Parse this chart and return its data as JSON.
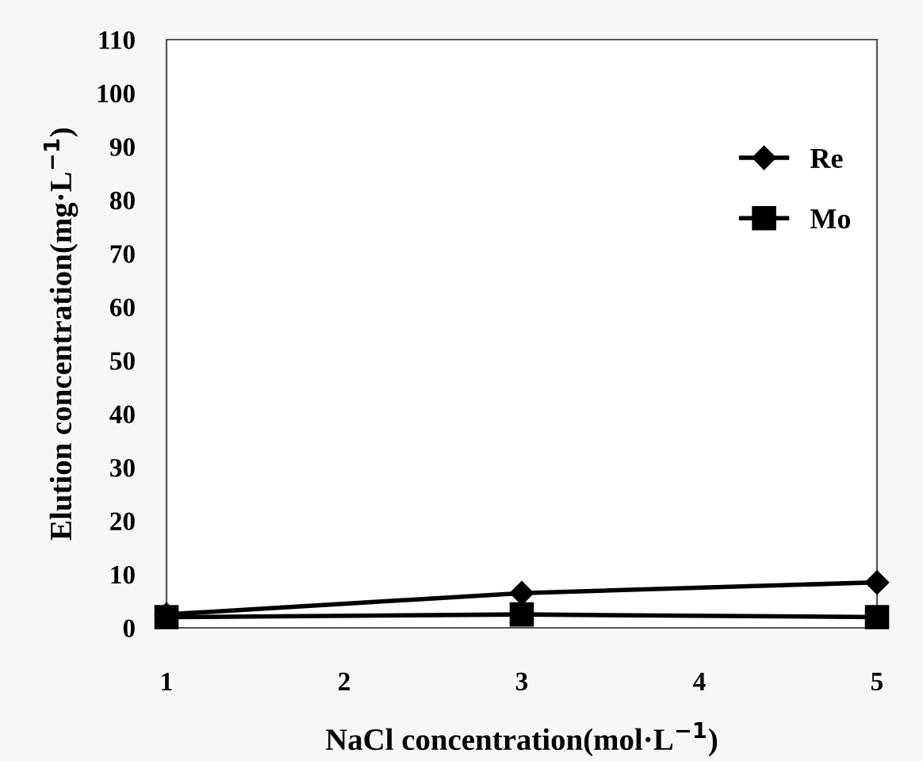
{
  "chart_data": {
    "type": "line",
    "xlabel": "NaCl concentration(mol·L$^{−1}$)",
    "ylabel": "Elution concentration(mg·L$^{−1}$)",
    "x": [
      1,
      3,
      5
    ],
    "series": [
      {
        "name": "Re",
        "color": "#000000",
        "values": [
          2.5,
          6.5,
          8.5
        ],
        "marker": "diamond"
      },
      {
        "name": "Mo",
        "color": "#000000",
        "values": [
          2,
          2.5,
          2
        ],
        "marker": "square"
      }
    ],
    "xlim": [
      1,
      5
    ],
    "xticks": [
      1,
      2,
      3,
      4,
      5
    ],
    "ylim": [
      0,
      110
    ],
    "yticks": [
      0,
      10,
      20,
      30,
      40,
      50,
      60,
      70,
      80,
      90,
      100,
      110
    ],
    "grid": false,
    "legend": "top right",
    "line_style": "solid"
  }
}
